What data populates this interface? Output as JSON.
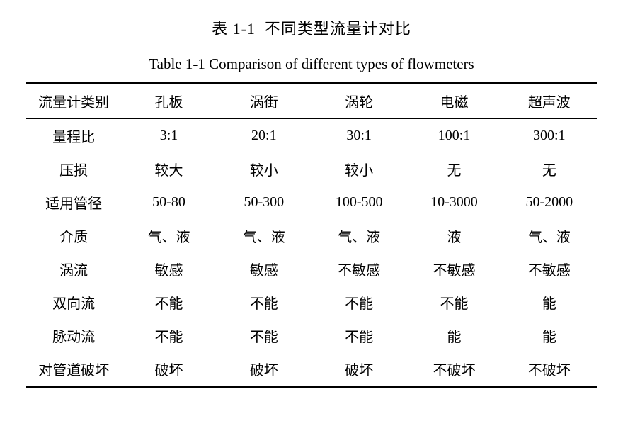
{
  "captions": {
    "zh": "表 1-1  不同类型流量计对比",
    "en": "Table 1-1 Comparison of different types of flowmeters"
  },
  "table": {
    "header": [
      "流量计类别",
      "孔板",
      "涡街",
      "涡轮",
      "电磁",
      "超声波"
    ],
    "rows": [
      {
        "label": "量程比",
        "values": [
          "3:1",
          "20:1",
          "30:1",
          "100:1",
          "300:1"
        ]
      },
      {
        "label": "压损",
        "values": [
          "较大",
          "较小",
          "较小",
          "无",
          "无"
        ]
      },
      {
        "label": "适用管径",
        "values": [
          "50-80",
          "50-300",
          "100-500",
          "10-3000",
          "50-2000"
        ]
      },
      {
        "label": "介质",
        "values": [
          "气、液",
          "气、液",
          "气、液",
          "液",
          "气、液"
        ]
      },
      {
        "label": "涡流",
        "values": [
          "敏感",
          "敏感",
          "不敏感",
          "不敏感",
          "不敏感"
        ]
      },
      {
        "label": "双向流",
        "values": [
          "不能",
          "不能",
          "不能",
          "不能",
          "能"
        ]
      },
      {
        "label": "脉动流",
        "values": [
          "不能",
          "不能",
          "不能",
          "能",
          "能"
        ]
      },
      {
        "label": "对管道破坏",
        "values": [
          "破坏",
          "破坏",
          "破坏",
          "不破坏",
          "不破坏"
        ]
      }
    ]
  },
  "colors": {
    "background": "#ffffff",
    "text": "#000000",
    "rule": "#000000"
  }
}
